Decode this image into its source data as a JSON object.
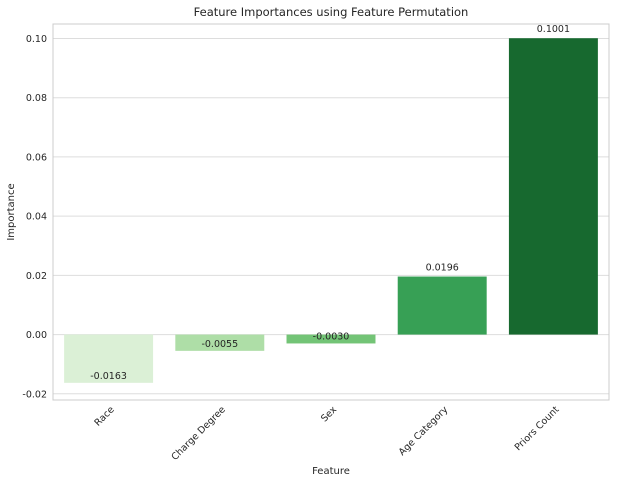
{
  "chart_data": {
    "type": "bar",
    "title": "Feature Importances using Feature Permutation",
    "xlabel": "Feature",
    "ylabel": "Importance",
    "categories": [
      "Race",
      "Charge Degree",
      "Sex",
      "Age Category",
      "Priors Count"
    ],
    "values": [
      -0.0163,
      -0.0055,
      -0.003,
      0.0196,
      0.1001
    ],
    "value_labels": [
      "-0.0163",
      "-0.0055",
      "-0.0030",
      "0.0196",
      "0.1001"
    ],
    "colors": [
      "#dbf0d6",
      "#aedea7",
      "#73c476",
      "#37a055",
      "#17692f"
    ],
    "ylim": [
      -0.0221,
      0.1049
    ],
    "yticks": [
      -0.02,
      0.0,
      0.02,
      0.04,
      0.06,
      0.08,
      0.1
    ],
    "ytick_labels": [
      "-0.02",
      "0.00",
      "0.02",
      "0.04",
      "0.06",
      "0.08",
      "0.10"
    ],
    "grid": true,
    "grid_axis": "y",
    "xtick_rotation": 45
  }
}
